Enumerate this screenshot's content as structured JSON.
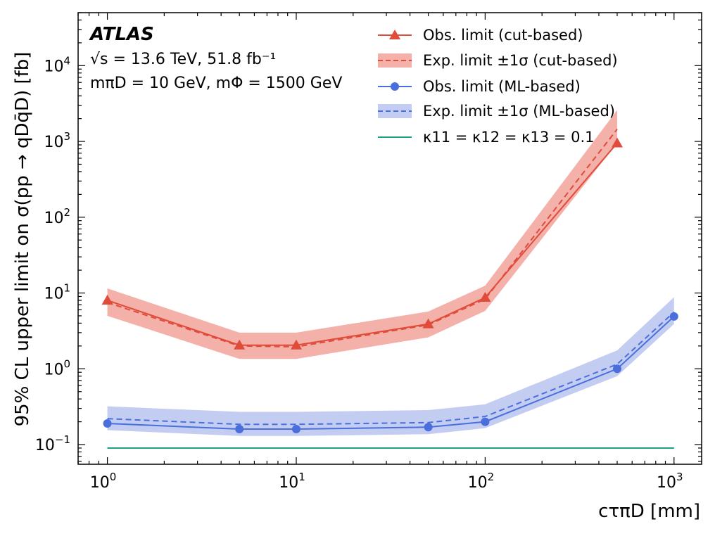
{
  "chart_data": {
    "type": "line",
    "x_scale": "log",
    "y_scale": "log",
    "xlim": [
      0.7,
      1400
    ],
    "ylim": [
      0.055,
      50000
    ],
    "x": [
      1,
      5,
      10,
      50,
      100,
      500,
      1000
    ],
    "x_ticks": [
      {
        "value": 1,
        "base": "10",
        "exp": "0"
      },
      {
        "value": 10,
        "base": "10",
        "exp": "1"
      },
      {
        "value": 100,
        "base": "10",
        "exp": "2"
      },
      {
        "value": 1000,
        "base": "10",
        "exp": "3"
      }
    ],
    "y_ticks": [
      {
        "value": 0.1,
        "base": "10",
        "exp": "−1"
      },
      {
        "value": 1,
        "base": "10",
        "exp": "0"
      },
      {
        "value": 10,
        "base": "10",
        "exp": "1"
      },
      {
        "value": 100,
        "base": "10",
        "exp": "2"
      },
      {
        "value": 1000,
        "base": "10",
        "exp": "3"
      },
      {
        "value": 10000,
        "base": "10",
        "exp": "4"
      }
    ],
    "xlabel": "cτπD [mm]",
    "ylabel": "95% CL upper limit on σ(pp → qDq̄D) [fb]",
    "series": [
      {
        "name": "Obs. limit (cut-based)",
        "kind": "observed",
        "marker": "triangle",
        "color": "#e04b3a",
        "x": [
          1,
          5,
          10,
          50,
          100,
          500
        ],
        "values": [
          8.0,
          2.05,
          2.05,
          3.9,
          8.7,
          950
        ]
      },
      {
        "name": "Exp. limit ±1σ (cut-based)",
        "kind": "expected",
        "color": "#e04b3a",
        "band_color": "#f4b1aa",
        "x": [
          1,
          5,
          10,
          50,
          100,
          500
        ],
        "values": [
          7.5,
          2.0,
          1.95,
          3.8,
          8.3,
          1450
        ],
        "band_low": [
          5.0,
          1.35,
          1.35,
          2.6,
          5.8,
          950
        ],
        "band_high": [
          11.5,
          3.0,
          3.0,
          5.7,
          12.5,
          2600
        ]
      },
      {
        "name": "Obs. limit (ML-based)",
        "kind": "observed",
        "marker": "circle",
        "color": "#4a6fdc",
        "x": [
          1,
          5,
          10,
          50,
          100,
          500,
          1000
        ],
        "values": [
          0.19,
          0.16,
          0.16,
          0.17,
          0.2,
          1.0,
          4.9
        ]
      },
      {
        "name": "Exp. limit ±1σ (ML-based)",
        "kind": "expected",
        "color": "#4a6fdc",
        "band_color": "#c3cdf2",
        "x": [
          1,
          5,
          10,
          50,
          100,
          500,
          1000
        ],
        "values": [
          0.22,
          0.185,
          0.185,
          0.195,
          0.235,
          1.15,
          5.6
        ],
        "band_low": [
          0.155,
          0.13,
          0.13,
          0.137,
          0.165,
          0.8,
          3.9
        ],
        "band_high": [
          0.32,
          0.27,
          0.27,
          0.285,
          0.34,
          1.75,
          8.8
        ]
      },
      {
        "name": "κ11 = κ12 = κ13 = 0.1",
        "kind": "theory",
        "color": "#1aa085",
        "x": [
          1,
          1000
        ],
        "values": [
          0.09,
          0.09
        ]
      }
    ],
    "annotations": {
      "experiment": "ATLAS",
      "energy_line": "√s = 13.6 TeV, 51.8 fb⁻¹",
      "mass_line": "mπD = 10 GeV, mΦ = 1500 GeV"
    },
    "legend_position": "top-right",
    "grid": false
  }
}
